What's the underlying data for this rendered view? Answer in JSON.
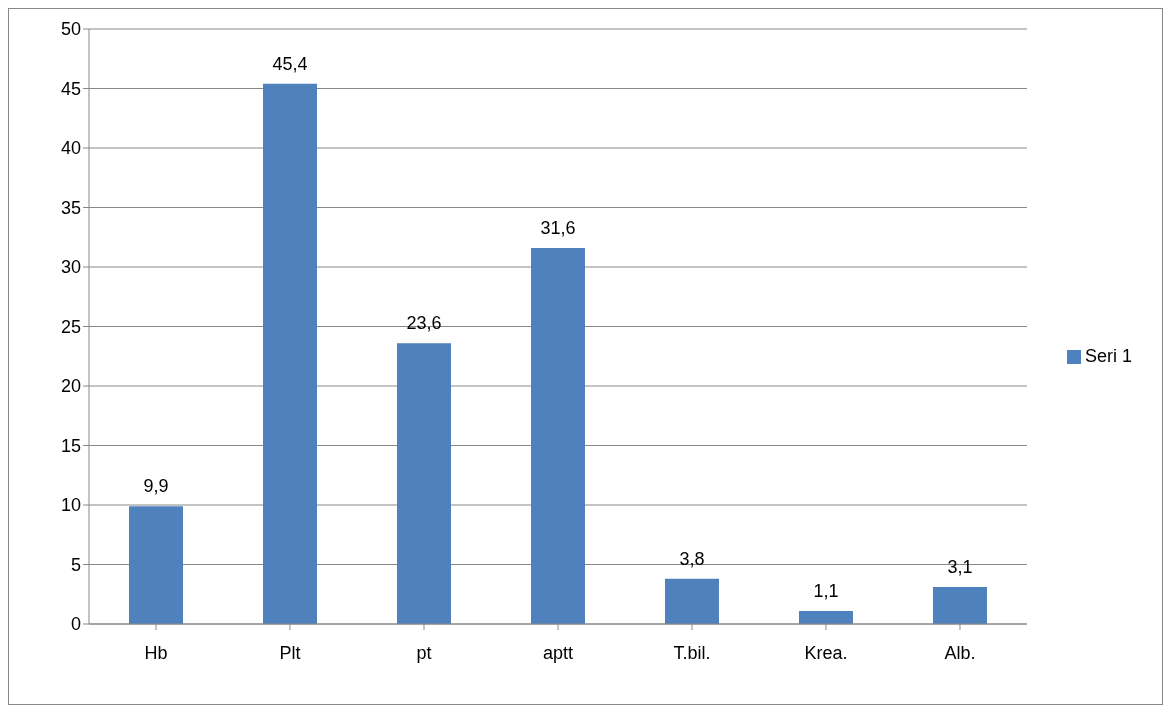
{
  "chart_data": {
    "type": "bar",
    "categories": [
      "Hb",
      "Plt",
      "pt",
      "aptt",
      "T.bil.",
      "Krea.",
      "Alb."
    ],
    "series": [
      {
        "name": "Seri 1",
        "color": "#4f81bd",
        "values": [
          9.9,
          45.4,
          23.6,
          31.6,
          3.8,
          1.1,
          3.1
        ],
        "value_labels": [
          "9,9",
          "45,4",
          "23,6",
          "31,6",
          "3,8",
          "1,1",
          "3,1"
        ]
      }
    ],
    "ylim": [
      0,
      50
    ],
    "yticks": [
      0,
      5,
      10,
      15,
      20,
      25,
      30,
      35,
      40,
      45,
      50
    ],
    "grid": "y",
    "legend": "right"
  }
}
